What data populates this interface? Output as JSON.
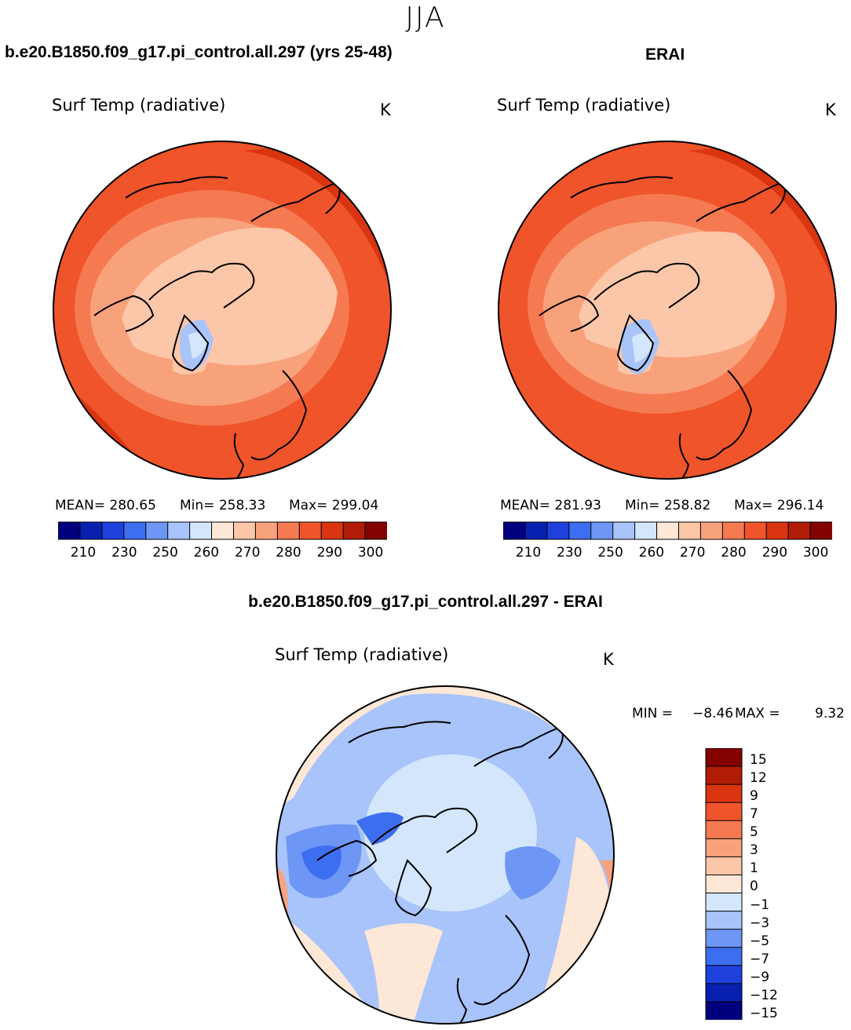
{
  "season": "JJA",
  "model_title": "b.e20.B1850.f09_g17.pi_control.all.297 (yrs 25-48)",
  "obs_title": "ERAI",
  "diff_title": "b.e20.B1850.f09_g17.pi_control.all.297 - ERAI",
  "panels": {
    "model": {
      "variable": "Surf Temp (radiative)",
      "units": "K",
      "mean": "MEAN= 280.65",
      "min": "Min= 258.33",
      "max": "Max= 299.04"
    },
    "obs": {
      "variable": "Surf Temp (radiative)",
      "units": "K",
      "mean": "MEAN= 281.93",
      "min": "Min= 258.82",
      "max": "Max= 296.14"
    },
    "diff": {
      "variable": "Surf Temp (radiative)",
      "units": "K",
      "min_label": "MIN =",
      "min_value": "−8.46",
      "max_label": "MAX =",
      "max_value": "9.32"
    }
  },
  "abs_colorbar": {
    "colors": [
      "#00007f",
      "#0820b0",
      "#1e40dc",
      "#3d6ef0",
      "#6e96f5",
      "#a8c4fa",
      "#d4e6fb",
      "#fde7d6",
      "#fcc6a8",
      "#f8a27c",
      "#f57a52",
      "#f0542a",
      "#d93510",
      "#b01c05",
      "#820200"
    ],
    "tick_labels": [
      "210",
      "230",
      "250",
      "260",
      "270",
      "280",
      "290",
      "300"
    ]
  },
  "diff_colorbar": {
    "colors": [
      "#820200",
      "#b01c05",
      "#d93510",
      "#f0542a",
      "#f57a52",
      "#f8a27c",
      "#fcc6a8",
      "#fde7d6",
      "#d4e6fb",
      "#a8c4fa",
      "#6e96f5",
      "#3d6ef0",
      "#1e40dc",
      "#0820b0",
      "#00007f"
    ],
    "tick_labels": [
      "15",
      "12",
      "9",
      "7",
      "5",
      "3",
      "1",
      "0",
      "−1",
      "−3",
      "−5",
      "−7",
      "−9",
      "−12",
      "−15"
    ]
  }
}
